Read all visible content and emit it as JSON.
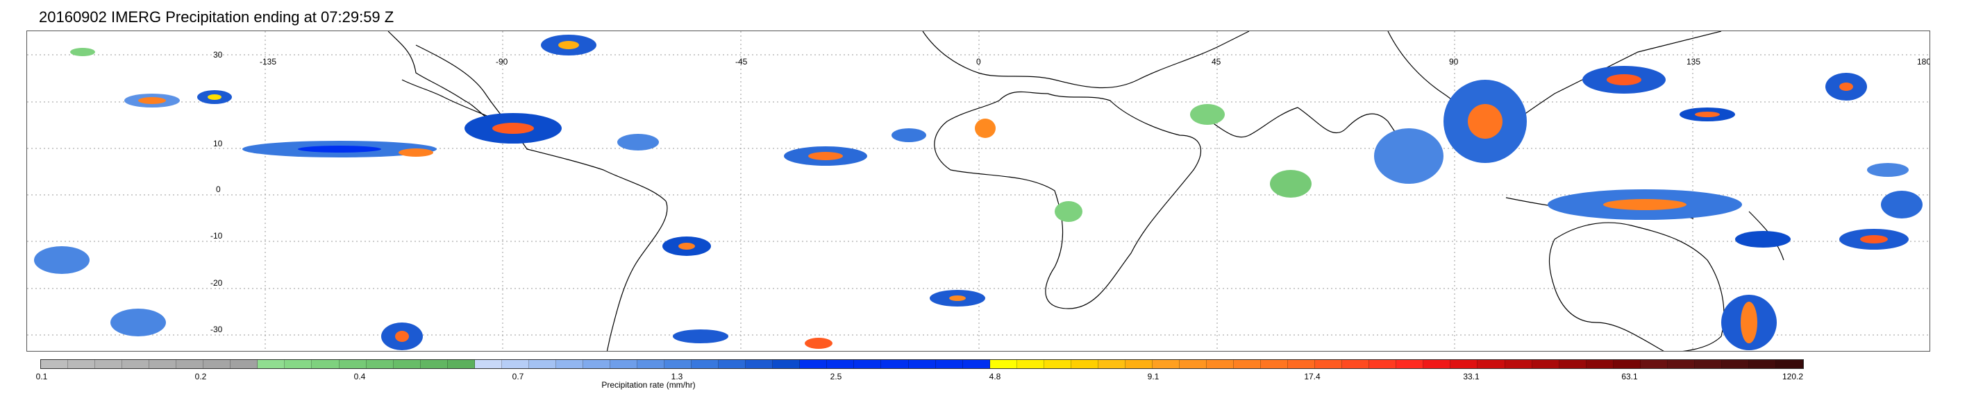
{
  "title": "20160902 IMERG Precipitation ending at 07:29:59 Z",
  "map": {
    "lon_ticks": [
      "-135",
      "-90",
      "-45",
      "0",
      "45",
      "90",
      "135",
      "180"
    ],
    "lat_ticks": [
      "30",
      "10",
      "0",
      "-10",
      "-20",
      "-30"
    ],
    "grid": true
  },
  "colorbar": {
    "title": "Precipitation rate (mm/hr)",
    "labels": [
      "0.1",
      "0.2",
      "0.4",
      "0.7",
      "1.3",
      "2.5",
      "4.8",
      "9.1",
      "17.4",
      "33.1",
      "63.1",
      "120.2"
    ],
    "colors": [
      "#bdbdbd",
      "#b9b9b9",
      "#b5b5b5",
      "#b1b1b1",
      "#adadad",
      "#a9a9a9",
      "#a5a5a5",
      "#a1a1a1",
      "#90dd90",
      "#86d886",
      "#7ed17e",
      "#76ca76",
      "#70c470",
      "#68bd68",
      "#62b662",
      "#5cb05c",
      "#c8d8f8",
      "#b6cdf6",
      "#a4c2f3",
      "#92b6f0",
      "#80aaed",
      "#6e9eea",
      "#5c92e6",
      "#4a86e2",
      "#3878de",
      "#2a6ad8",
      "#1c5ad2",
      "#0c4ccc",
      "#0030f0",
      "#0030f0",
      "#0030f0",
      "#0030f0",
      "#0030f0",
      "#0030f0",
      "#0030f0",
      "#ffff00",
      "#ffef00",
      "#ffdf00",
      "#ffcf00",
      "#ffbf10",
      "#ffaf10",
      "#ffa020",
      "#ff9520",
      "#ff8a20",
      "#ff8020",
      "#ff7520",
      "#ff6a20",
      "#ff5a20",
      "#ff4a20",
      "#ff3a20",
      "#ff2a20",
      "#f01818",
      "#e01010",
      "#cc0e0e",
      "#bb0c0c",
      "#aa0a0a",
      "#990808",
      "#880606",
      "#770404",
      "#6a1010",
      "#601010",
      "#561010",
      "#4c0e0e",
      "#420c0c",
      "#380a0a"
    ]
  }
}
